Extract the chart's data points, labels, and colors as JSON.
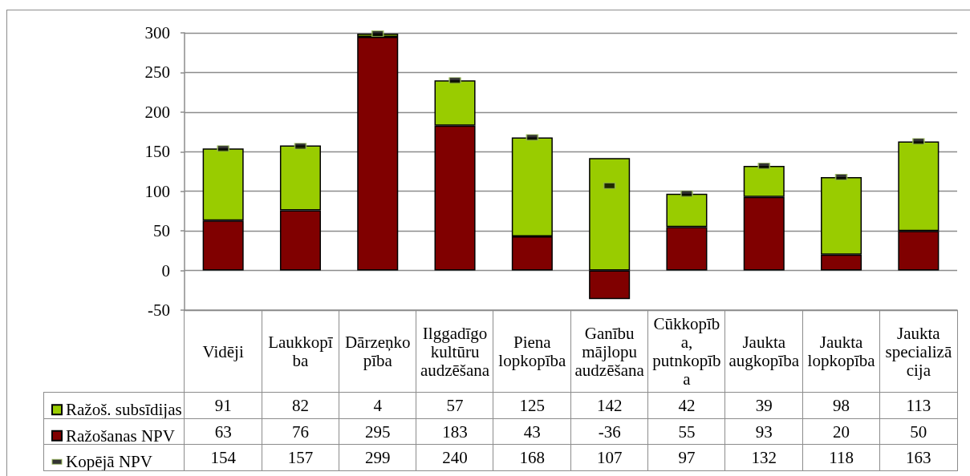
{
  "chart_data": {
    "type": "bar",
    "stacked": true,
    "categories": [
      "Vidēji",
      "Laukkopība",
      "Dārzeņkopība",
      "Ilggadīgo kultūru audzēšana",
      "Piena lopkopība",
      "Ganību mājlopu audzēšana",
      "Cūkkopība, putnkopība",
      "Jaukta augkopība",
      "Jaukta lopkopība",
      "Jaukta specializācija"
    ],
    "series": [
      {
        "name": "Ražošanas NPV",
        "color": "#800000",
        "values": [
          63,
          76,
          295,
          183,
          43,
          -36,
          55,
          93,
          20,
          50
        ]
      },
      {
        "name": "Ražoš. subsīdijas",
        "color": "#99cc00",
        "values": [
          91,
          82,
          4,
          57,
          125,
          142,
          42,
          39,
          98,
          113
        ]
      },
      {
        "name": "Kopējā NPV",
        "type": "scatter",
        "marker": "square",
        "color": "#9bbb59",
        "x": [
          "Vidēji",
          "Laukkopība",
          "Dārzeņkopība",
          "Ilggadīgo kultūru audzēšana",
          "Piena lopkopība",
          "Ganību mājlopu audzēšana",
          "Cūkkopība, putnkopība",
          "Jaukta augkopība",
          "Jaukta lopkopība",
          "Jaukta specializācija"
        ],
        "values": [
          154,
          157,
          299,
          240,
          168,
          107,
          97,
          132,
          118,
          163
        ]
      }
    ],
    "ylim": [
      -50,
      300
    ],
    "yticks": [
      -50,
      0,
      50,
      100,
      150,
      200,
      250,
      300
    ],
    "grid": "y",
    "legend": "bottom left",
    "data_labels": true
  }
}
